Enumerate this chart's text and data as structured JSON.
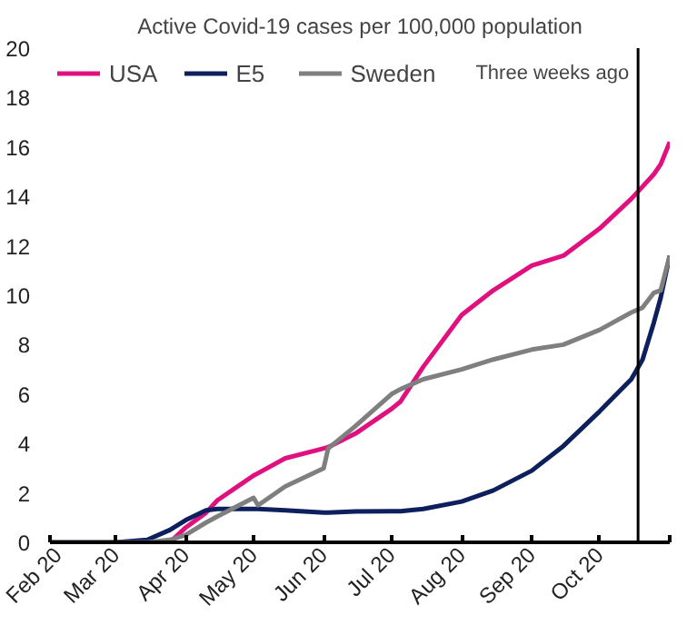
{
  "chart_data": {
    "type": "line",
    "title": "Active Covid-19 cases per 100,000 population",
    "x": [
      "2020-02-01",
      "2020-03-01",
      "2020-03-15",
      "2020-03-25",
      "2020-04-01",
      "2020-04-10",
      "2020-04-15",
      "2020-05-01",
      "2020-05-03",
      "2020-05-15",
      "2020-06-01",
      "2020-06-03",
      "2020-06-15",
      "2020-07-01",
      "2020-07-05",
      "2020-07-15",
      "2020-08-01",
      "2020-08-15",
      "2020-09-01",
      "2020-09-15",
      "2020-10-01",
      "2020-10-15",
      "2020-10-20",
      "2020-10-25",
      "2020-10-28",
      "2020-11-01"
    ],
    "series": [
      {
        "name": "USA",
        "color": "#e0107f",
        "values": [
          null,
          null,
          0,
          0,
          0.6,
          1.2,
          1.7,
          2.7,
          2.8,
          3.4,
          3.8,
          3.85,
          4.4,
          5.4,
          5.7,
          7.1,
          9.2,
          10.2,
          11.2,
          11.6,
          12.7,
          13.9,
          14.4,
          14.9,
          15.3,
          16.2
        ]
      },
      {
        "name": "E5",
        "color": "#0d1f5c",
        "values": [
          0,
          0,
          0.1,
          0.5,
          0.9,
          1.3,
          1.35,
          1.35,
          1.35,
          1.3,
          1.2,
          1.2,
          1.25,
          1.26,
          1.26,
          1.35,
          1.65,
          2.1,
          2.9,
          3.9,
          5.3,
          6.6,
          7.4,
          8.9,
          9.9,
          11.6
        ]
      },
      {
        "name": "Sweden",
        "color": "#7f7f7f",
        "values": [
          0,
          0,
          0,
          0.1,
          0.3,
          0.8,
          1.05,
          1.8,
          1.5,
          2.26,
          3.0,
          3.8,
          4.7,
          6.0,
          6.2,
          6.6,
          7.0,
          7.4,
          7.8,
          8.0,
          8.6,
          9.3,
          9.5,
          10.1,
          10.2,
          11.6
        ]
      }
    ],
    "ylim": [
      0,
      20
    ],
    "yticks": [
      0,
      2,
      4,
      6,
      8,
      10,
      12,
      14,
      16,
      18,
      20
    ],
    "xlim": [
      "2020-02-01",
      "2020-11-01"
    ],
    "xticks": [
      {
        "value": "2020-02-01",
        "label": "Feb 20"
      },
      {
        "value": "2020-03-01",
        "label": "Mar 20"
      },
      {
        "value": "2020-04-01",
        "label": "Apr 20"
      },
      {
        "value": "2020-05-01",
        "label": "May 20"
      },
      {
        "value": "2020-06-01",
        "label": "Jun 20"
      },
      {
        "value": "2020-07-01",
        "label": "Jul 20"
      },
      {
        "value": "2020-08-01",
        "label": "Aug 20"
      },
      {
        "value": "2020-09-01",
        "label": "Sep 20"
      },
      {
        "value": "2020-10-01",
        "label": "Oct 20"
      },
      {
        "value": "2020-11-01",
        "label": null
      }
    ],
    "ref_lines": [
      {
        "axis": "x",
        "value": "2020-10-18",
        "label": "Three weeks ago",
        "color": "#000000"
      }
    ],
    "grid": false,
    "legend": "top",
    "marker": "none",
    "line_style": "solid"
  }
}
